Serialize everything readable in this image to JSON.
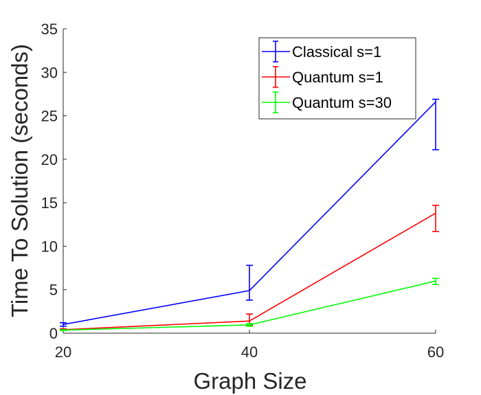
{
  "chart_data": {
    "type": "line",
    "title": "",
    "xlabel": "Graph Size",
    "ylabel": "Time To Solution (seconds)",
    "xlim": [
      20,
      60
    ],
    "ylim": [
      0,
      35
    ],
    "xticks": [
      20,
      40,
      60
    ],
    "yticks": [
      0,
      5,
      10,
      15,
      20,
      25,
      30,
      35
    ],
    "grid": false,
    "legend_position": "top-right",
    "series": [
      {
        "name": "Classical s=1",
        "color": "#0000ff",
        "x": [
          20,
          40,
          60
        ],
        "y": [
          1.0,
          4.9,
          26.6
        ],
        "err_low": [
          0.8,
          3.8,
          21.1
        ],
        "err_high": [
          1.2,
          7.8,
          26.9
        ]
      },
      {
        "name": "Quantum s=1",
        "color": "#ff0000",
        "x": [
          20,
          40,
          60
        ],
        "y": [
          0.4,
          1.4,
          13.8
        ],
        "err_low": [
          0.3,
          0.9,
          11.7
        ],
        "err_high": [
          0.5,
          2.2,
          14.7
        ]
      },
      {
        "name": "Quantum s=30",
        "color": "#00ff00",
        "x": [
          20,
          40,
          60
        ],
        "y": [
          0.35,
          0.95,
          6.0
        ],
        "err_low": [
          0.3,
          0.8,
          5.6
        ],
        "err_high": [
          0.4,
          1.1,
          6.3
        ]
      }
    ]
  }
}
